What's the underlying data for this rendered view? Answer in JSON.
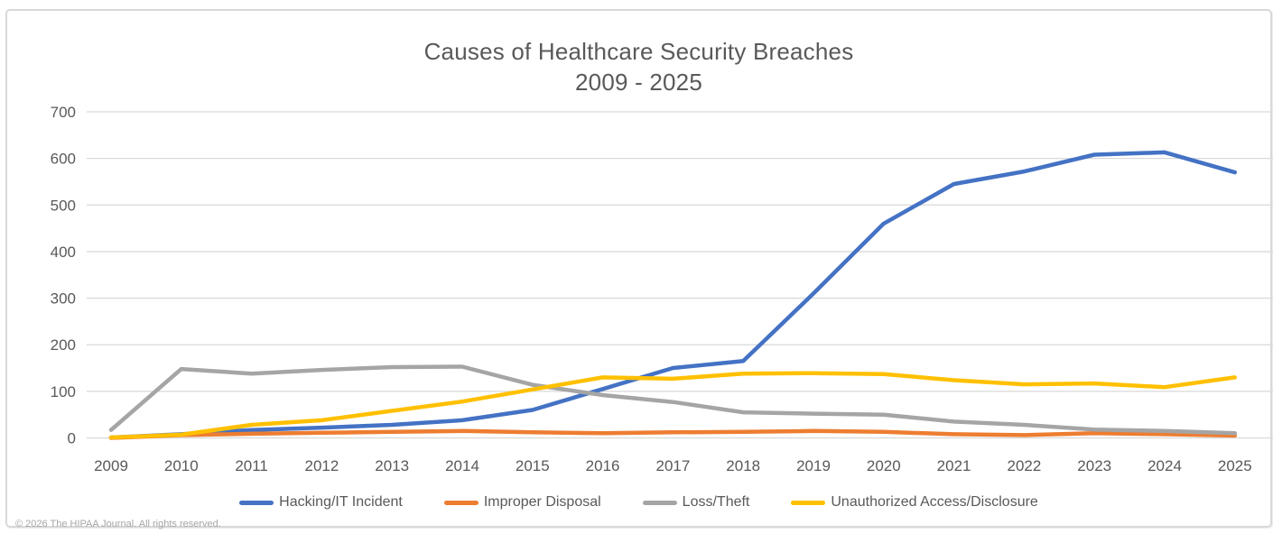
{
  "footer": {
    "copyright": "© 2026 The HIPAA Journal. All rights reserved."
  },
  "colors": {
    "title_text": "#595959",
    "axis_text": "#595959",
    "gridline": "#d9d9d9",
    "frame_border": "#d9d9d9",
    "background": "#ffffff"
  },
  "chart_data": {
    "type": "line",
    "title": "Causes of Healthcare Security Breaches",
    "subtitle": "2009 - 2025",
    "xlabel": "",
    "ylabel": "",
    "ylim": [
      0,
      700
    ],
    "ytick_step": 100,
    "yticks": [
      0,
      100,
      200,
      300,
      400,
      500,
      600,
      700
    ],
    "grid": true,
    "legend_position": "bottom",
    "categories": [
      "2009",
      "2010",
      "2011",
      "2012",
      "2013",
      "2014",
      "2015",
      "2016",
      "2017",
      "2018",
      "2019",
      "2020",
      "2021",
      "2022",
      "2023",
      "2024",
      "2025"
    ],
    "series": [
      {
        "name": "Hacking/IT Incident",
        "color": "#4472C4",
        "values": [
          1,
          8,
          17,
          22,
          28,
          38,
          60,
          105,
          150,
          165,
          310,
          460,
          545,
          572,
          608,
          613,
          570
        ]
      },
      {
        "name": "Improper Disposal",
        "color": "#ED7D31",
        "values": [
          0,
          6,
          9,
          11,
          13,
          15,
          12,
          10,
          12,
          13,
          15,
          13,
          8,
          6,
          10,
          8,
          5
        ]
      },
      {
        "name": "Loss/Theft",
        "color": "#A5A5A5",
        "values": [
          17,
          148,
          138,
          146,
          152,
          153,
          114,
          92,
          77,
          55,
          52,
          50,
          35,
          28,
          18,
          15,
          10
        ]
      },
      {
        "name": "Unauthorized Access/Disclosure",
        "color": "#FFC000",
        "values": [
          1,
          7,
          28,
          38,
          58,
          78,
          104,
          130,
          127,
          138,
          139,
          137,
          124,
          115,
          117,
          109,
          130
        ]
      }
    ]
  }
}
